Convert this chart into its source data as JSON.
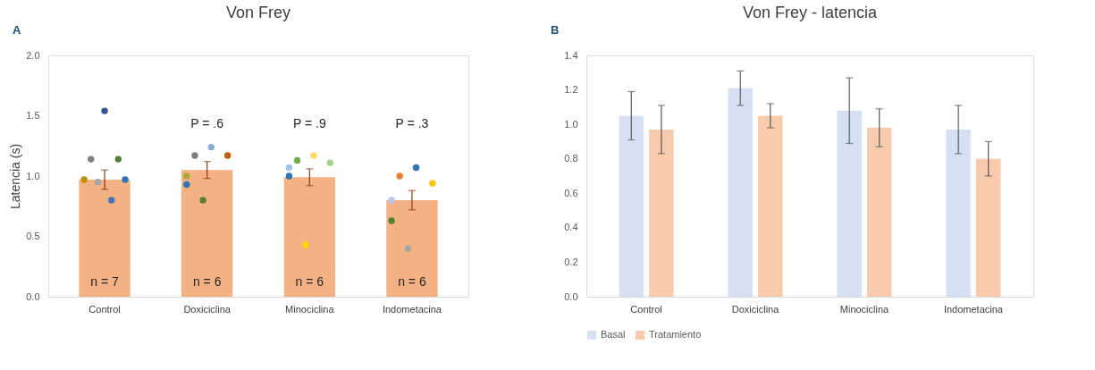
{
  "chart_data": [
    {
      "type": "bar",
      "title": "Von Frey",
      "ylabel": "Latencia (s)",
      "categories": [
        "Control",
        "Doxiciclina",
        "Minociclina",
        "Indometacina"
      ],
      "series": [
        {
          "type": "bar",
          "color": "#f4b183",
          "values": [
            0.97,
            1.05,
            0.99,
            0.8
          ],
          "errors": [
            0.08,
            0.07,
            0.07,
            0.08
          ]
        },
        {
          "type": "scatter",
          "x": [
            "Control",
            "Control",
            "Control",
            "Control",
            "Control",
            "Control",
            "Control",
            "Doxiciclina",
            "Doxiciclina",
            "Doxiciclina",
            "Doxiciclina",
            "Doxiciclina",
            "Doxiciclina",
            "Minociclina",
            "Minociclina",
            "Minociclina",
            "Minociclina",
            "Minociclina",
            "Minociclina",
            "Indometacina",
            "Indometacina",
            "Indometacina",
            "Indometacina",
            "Indometacina",
            "Indometacina"
          ],
          "values": [
            1.54,
            1.14,
            1.14,
            0.97,
            0.97,
            0.95,
            0.8,
            1.24,
            1.17,
            1.17,
            1.0,
            0.93,
            0.8,
            1.17,
            1.13,
            1.11,
            1.07,
            1.0,
            0.43,
            1.07,
            1.0,
            0.94,
            0.8,
            0.63,
            0.4
          ],
          "colors": [
            "#2f5597",
            "#7f7f7f",
            "#548235",
            "#bf9000",
            "#2e75b6",
            "#a5a5a5",
            "#4472c4",
            "#8faadc",
            "#7f7f7f",
            "#c55a11",
            "#a9a93a",
            "#2e75b6",
            "#548235",
            "#ffd966",
            "#70ad47",
            "#a9d18e",
            "#9dc3e6",
            "#2e75b6",
            "#ffd700",
            "#2e75b6",
            "#ed7d31",
            "#ffc000",
            "#b4c7e7",
            "#548235",
            "#a5a5a5"
          ]
        }
      ],
      "ylim": [
        0,
        2
      ],
      "yticks": [
        {
          "value": 0,
          "label": "0.0"
        },
        {
          "value": 0.5,
          "label": "0.5"
        },
        {
          "value": 1,
          "label": "1.0"
        },
        {
          "value": 1.5,
          "label": "1.5"
        },
        {
          "value": 2,
          "label": "2.0"
        }
      ],
      "annotations": [
        "A",
        "P = .6",
        "P = .9",
        "P = .3",
        "n = 7",
        "n = 6",
        "n = 6",
        "n = 6"
      ],
      "grid": false,
      "legend": false
    },
    {
      "type": "bar",
      "title": "Von Frey - latencia",
      "categories": [
        "Control",
        "Doxiciclina",
        "Minociclina",
        "Indometacina"
      ],
      "series": [
        {
          "name": "Basal",
          "color": "#d6e0f3",
          "values": [
            1.05,
            1.21,
            1.08,
            0.97
          ],
          "errors": [
            0.14,
            0.1,
            0.19,
            0.14
          ]
        },
        {
          "name": "Tratamiento",
          "color": "#f8cbad",
          "values": [
            0.97,
            1.05,
            0.98,
            0.8
          ],
          "errors": [
            0.14,
            0.07,
            0.11,
            0.1
          ]
        }
      ],
      "ylim": [
        0,
        1.4
      ],
      "yticks": [
        {
          "value": 0,
          "label": "0.0"
        },
        {
          "value": 0.2,
          "label": "0.2"
        },
        {
          "value": 0.4,
          "label": "0.4"
        },
        {
          "value": 0.6,
          "label": "0.6"
        },
        {
          "value": 0.8,
          "label": "0.8"
        },
        {
          "value": 1,
          "label": "1.0"
        },
        {
          "value": 1.2,
          "label": "1.2"
        },
        {
          "value": 1.4,
          "label": "1.4"
        }
      ],
      "annotations": [
        "B"
      ],
      "grid": false,
      "legend": "bottom"
    }
  ]
}
